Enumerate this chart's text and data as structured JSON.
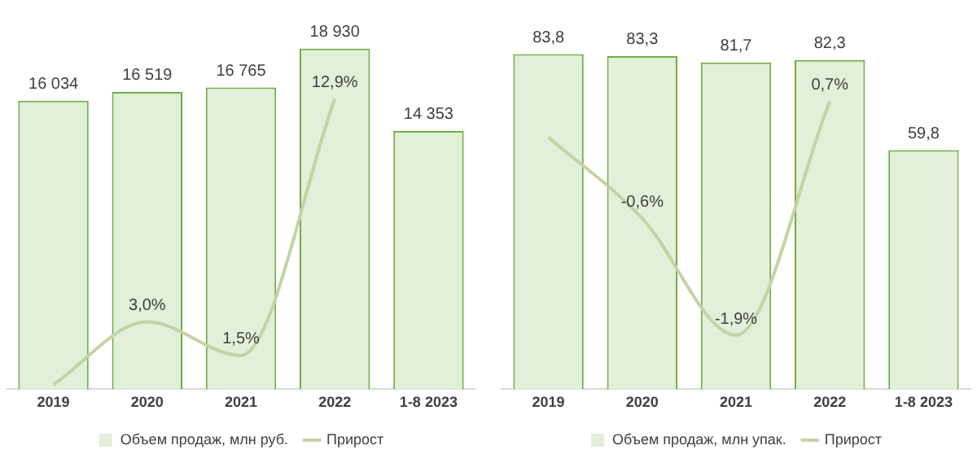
{
  "chart_data": [
    {
      "type": "bar",
      "categories": [
        "2019",
        "2020",
        "2021",
        "2022",
        "1-8 2023"
      ],
      "tick_labels": "x",
      "grid": false,
      "legend": "bottom",
      "series": [
        {
          "name": "Объем продаж, млн руб.",
          "type": "bar",
          "color": "#e2efd9",
          "values": [
            16034,
            16519,
            16765,
            18930,
            14353
          ],
          "value_labels": [
            "16 034",
            "16 519",
            "16 765",
            "18 930",
            "14 353"
          ]
        },
        {
          "name": "Прирост",
          "type": "line",
          "axis": "y2",
          "color": "#c4d3a4",
          "values": [
            0.2,
            3.0,
            1.5,
            12.9,
            null
          ],
          "value_labels": [
            null,
            "3,0%",
            "1,5%",
            "12,9%",
            null
          ]
        }
      ]
    },
    {
      "type": "bar",
      "categories": [
        "2019",
        "2020",
        "2021",
        "2022",
        "1-8 2023"
      ],
      "tick_labels": "x",
      "grid": false,
      "legend": "bottom",
      "series": [
        {
          "name": "Объем продаж, млн упак.",
          "type": "bar",
          "color": "#e2efd9",
          "values": [
            83.8,
            83.3,
            81.7,
            82.3,
            59.8
          ],
          "value_labels": [
            "83,8",
            "83,3",
            "81,7",
            "82,3",
            "59,8"
          ]
        },
        {
          "name": "Прирост",
          "type": "line",
          "axis": "y2",
          "color": "#c4d3a4",
          "values": [
            0.3,
            -0.6,
            -1.9,
            0.7,
            null
          ],
          "value_labels": [
            null,
            "-0,6%",
            "-1,9%",
            "0,7%",
            null
          ]
        }
      ]
    }
  ]
}
